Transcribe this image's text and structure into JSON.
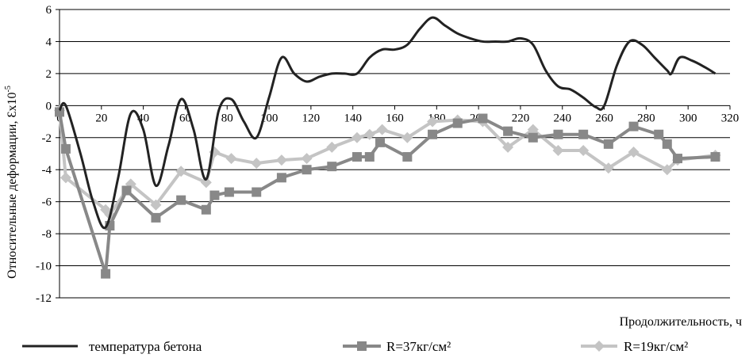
{
  "chart_data": {
    "type": "line",
    "ylabel": "Относительные деформации, Ɛx10",
    "ylabel_exponent": "-5",
    "xlabel": "Продолжительность, ч",
    "xlim": [
      0,
      320
    ],
    "ylim": [
      -12,
      6
    ],
    "x_ticks": [
      0,
      20,
      40,
      60,
      80,
      100,
      120,
      140,
      160,
      180,
      200,
      220,
      240,
      260,
      280,
      300,
      320
    ],
    "y_ticks": [
      6,
      4,
      2,
      0,
      -2,
      -4,
      -6,
      -8,
      -10,
      -12
    ],
    "grid": "horizontal",
    "legend_position": "bottom",
    "series": [
      {
        "name": "температура бетона",
        "color": "#222222",
        "marker": "none",
        "smooth": true,
        "x": [
          0,
          3,
          10,
          16,
          22,
          28,
          34,
          40,
          46,
          52,
          58,
          64,
          70,
          76,
          82,
          88,
          94,
          100,
          106,
          112,
          118,
          124,
          130,
          136,
          142,
          148,
          154,
          160,
          166,
          172,
          178,
          184,
          190,
          196,
          202,
          208,
          214,
          220,
          226,
          232,
          238,
          244,
          250,
          256,
          260,
          266,
          272,
          278,
          284,
          290,
          292,
          296,
          302,
          308,
          313
        ],
        "values": [
          -0.3,
          0.0,
          -3.0,
          -6.0,
          -7.6,
          -4.5,
          -0.5,
          -1.5,
          -5.0,
          -2.5,
          0.4,
          -1.5,
          -4.6,
          -0.3,
          0.4,
          -1.0,
          -2.0,
          0.5,
          3.0,
          2.0,
          1.5,
          1.8,
          2.0,
          2.0,
          2.0,
          3.0,
          3.5,
          3.5,
          3.8,
          4.8,
          5.5,
          5.0,
          4.5,
          4.2,
          4.0,
          4.0,
          4.0,
          4.2,
          3.8,
          2.2,
          1.2,
          1.0,
          0.5,
          -0.1,
          0.0,
          2.5,
          4.0,
          3.8,
          3.0,
          2.2,
          2.0,
          3.0,
          2.8,
          2.4,
          2.0
        ]
      },
      {
        "name": "R=37кг/см²",
        "color": "#888888",
        "marker": "square",
        "x": [
          0,
          3,
          22,
          24,
          32,
          46,
          58,
          70,
          74,
          81,
          94,
          106,
          118,
          130,
          142,
          148,
          153,
          166,
          178,
          190,
          202,
          214,
          226,
          238,
          250,
          262,
          274,
          286,
          290,
          295,
          313
        ],
        "values": [
          -0.4,
          -2.7,
          -10.5,
          -7.5,
          -5.3,
          -7.0,
          -5.9,
          -6.5,
          -5.6,
          -5.4,
          -5.4,
          -4.5,
          -4.0,
          -3.8,
          -3.2,
          -3.2,
          -2.3,
          -3.2,
          -1.8,
          -1.1,
          -0.8,
          -1.6,
          -2.0,
          -1.8,
          -1.8,
          -2.4,
          -1.3,
          -1.8,
          -2.4,
          -3.3,
          -3.2
        ]
      },
      {
        "name": "R=19кг/см²",
        "color": "#c4c4c4",
        "marker": "diamond",
        "x": [
          0,
          3,
          22,
          24,
          34,
          46,
          58,
          70,
          74,
          82,
          94,
          106,
          118,
          130,
          142,
          148,
          154,
          166,
          178,
          190,
          202,
          214,
          226,
          238,
          250,
          262,
          274,
          290,
          295,
          313
        ],
        "values": [
          -0.3,
          -4.5,
          -6.5,
          -6.8,
          -4.9,
          -6.2,
          -4.1,
          -4.8,
          -2.9,
          -3.3,
          -3.6,
          -3.4,
          -3.3,
          -2.6,
          -2.0,
          -1.8,
          -1.5,
          -2.0,
          -1.0,
          -0.9,
          -1.0,
          -2.6,
          -1.5,
          -2.8,
          -2.8,
          -3.9,
          -2.9,
          -4.0,
          -3.4,
          -3.1
        ]
      }
    ]
  }
}
